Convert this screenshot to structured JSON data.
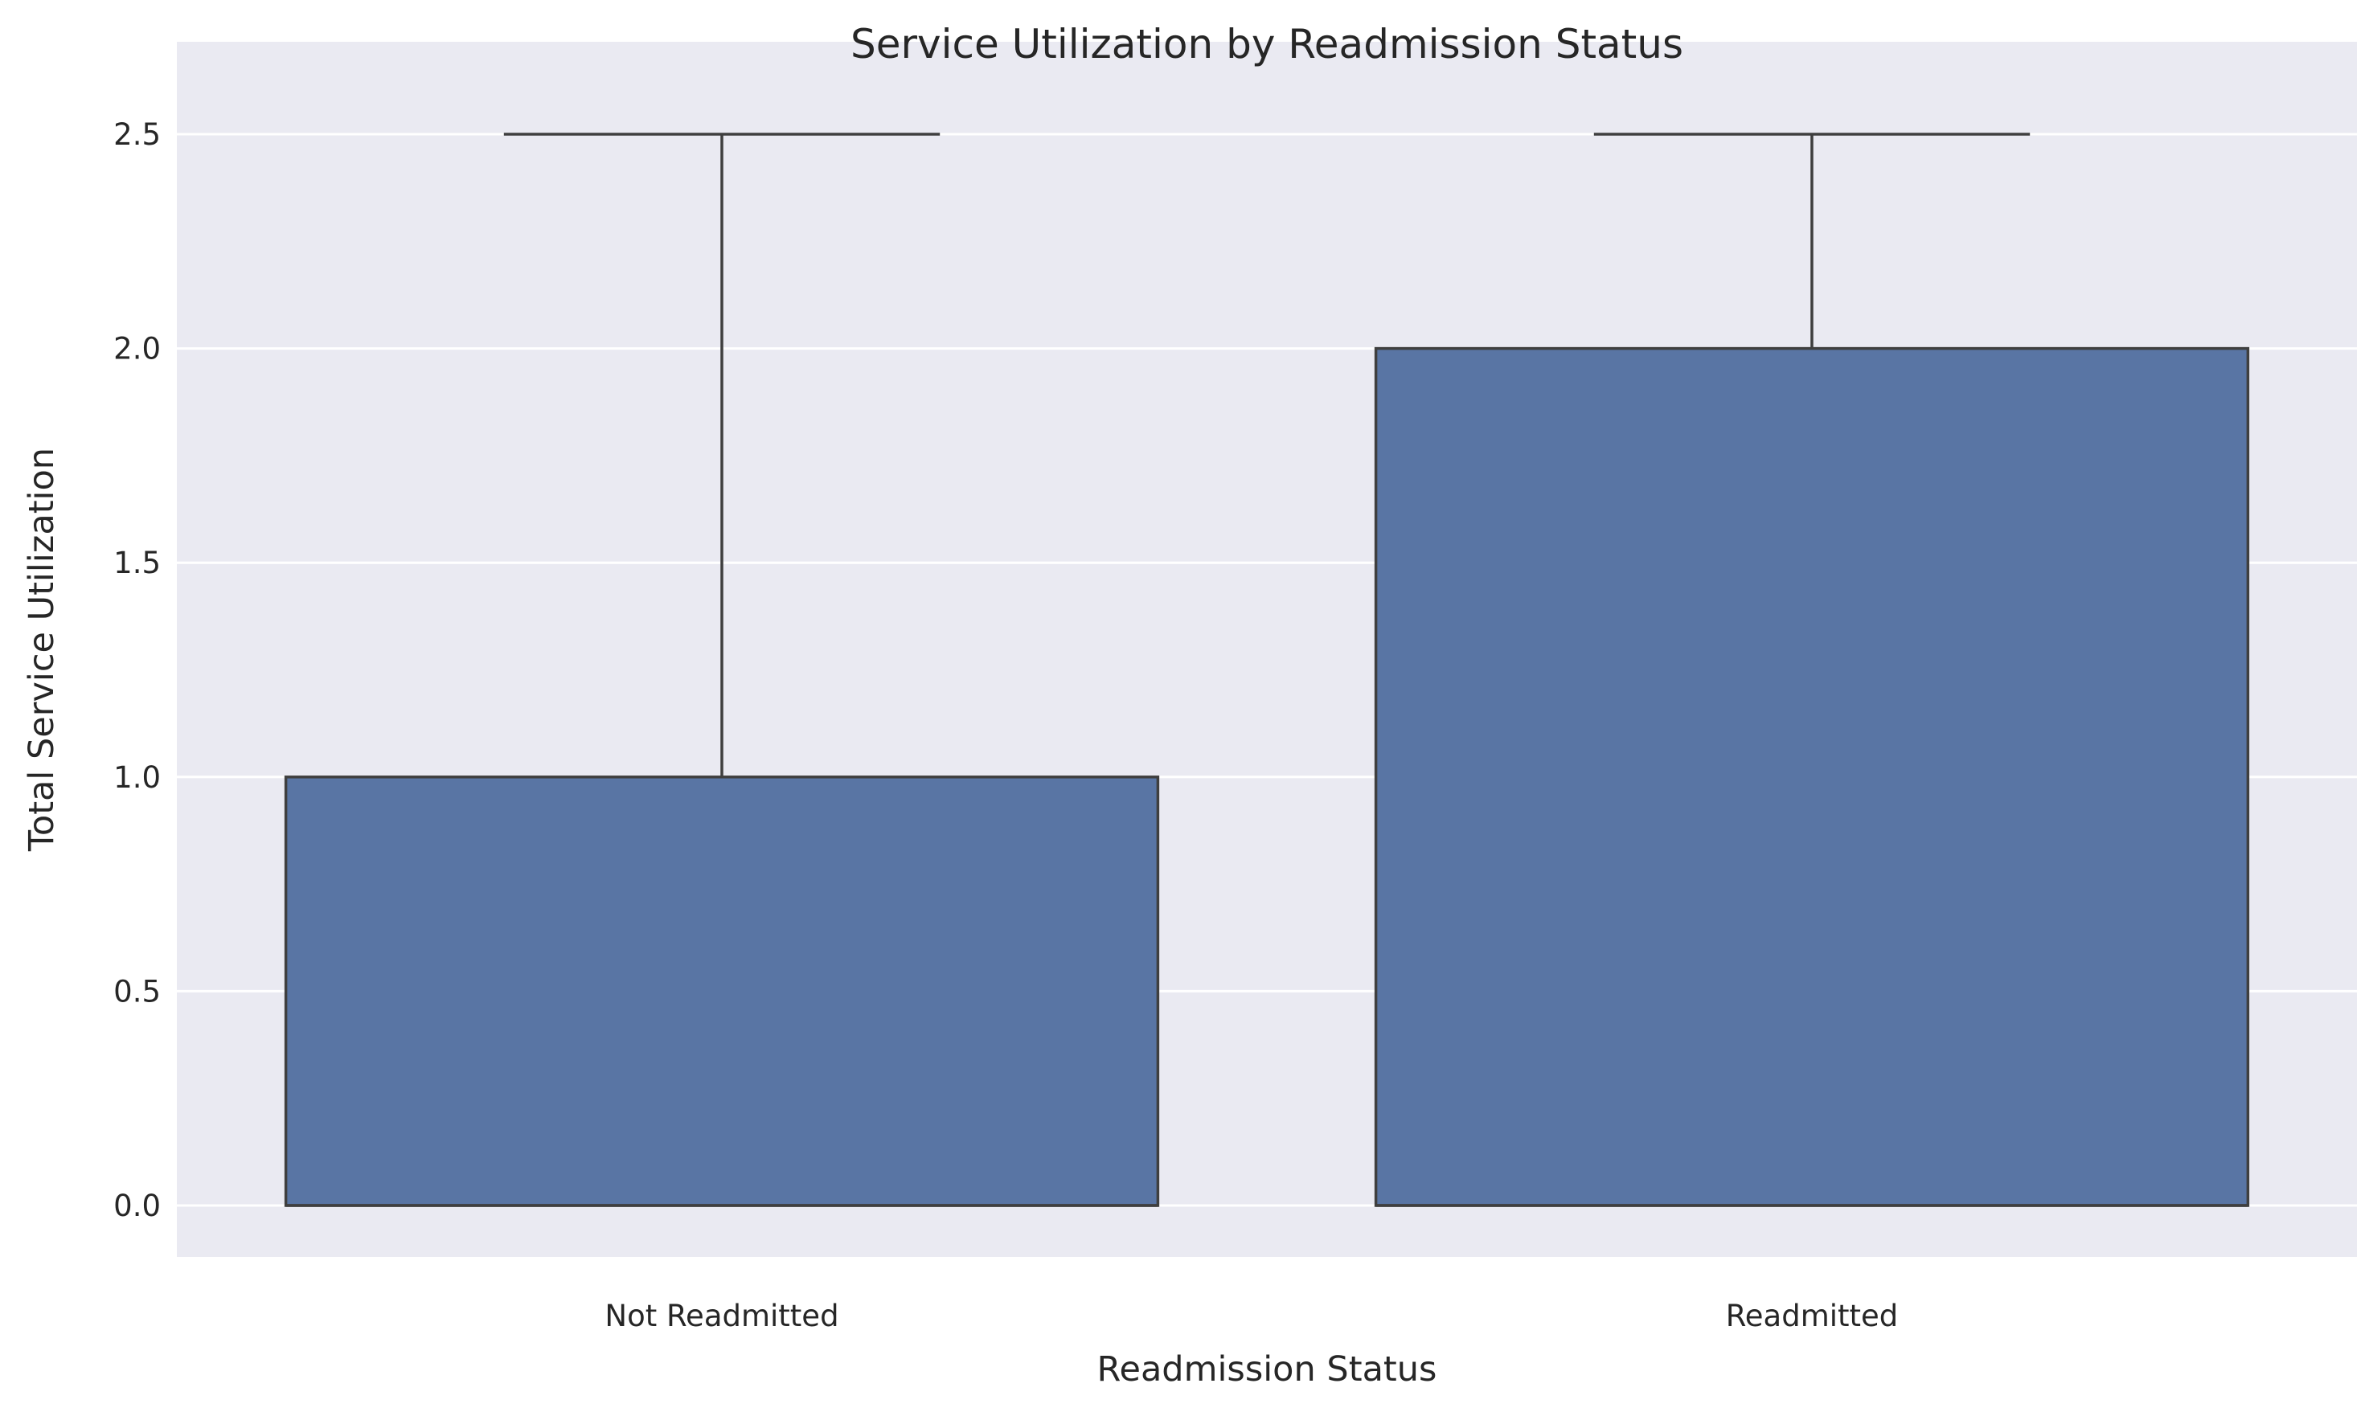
{
  "chart_data": {
    "type": "box",
    "title": "Service Utilization by Readmission Status",
    "xlabel": "Readmission Status",
    "ylabel": "Total Service Utilization",
    "categories": [
      "Not Readmitted",
      "Readmitted"
    ],
    "boxes": [
      {
        "category": "Not Readmitted",
        "whisker_low": 0.0,
        "q1": 0.0,
        "median": 0.0,
        "q3": 1.0,
        "whisker_high": 2.5
      },
      {
        "category": "Readmitted",
        "whisker_low": 0.0,
        "q1": 0.0,
        "median": 0.0,
        "q3": 2.0,
        "whisker_high": 2.5
      }
    ],
    "yticks": [
      "0.0",
      "0.5",
      "1.0",
      "1.5",
      "2.0",
      "2.5"
    ],
    "ytick_values": [
      0.0,
      0.5,
      1.0,
      1.5,
      2.0,
      2.5
    ],
    "ylim": [
      -0.125,
      2.72
    ],
    "grid": true,
    "colors": {
      "box_fill": "#5975a4",
      "box_edge": "#3f3f3f",
      "plot_bg": "#eaeaf2",
      "grid": "#ffffff"
    }
  }
}
